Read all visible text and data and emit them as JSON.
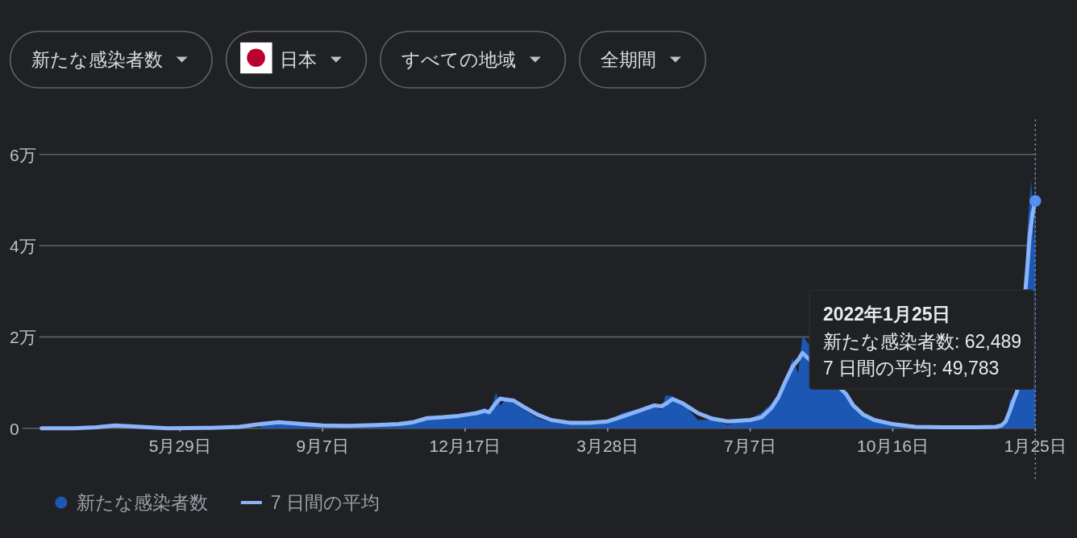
{
  "chart_data": {
    "type": "area",
    "xlim": [
      "2020-02-21",
      "2022-01-25"
    ],
    "xticks": [
      {
        "value": "2020-05-29",
        "label": "5月29日"
      },
      {
        "value": "2020-09-07",
        "label": "9月7日"
      },
      {
        "value": "2020-12-17",
        "label": "12月17日"
      },
      {
        "value": "2021-03-28",
        "label": "3月28日"
      },
      {
        "value": "2021-07-07",
        "label": "7月7日"
      },
      {
        "value": "2021-10-16",
        "label": "10月16日"
      },
      {
        "value": "2022-01-25",
        "label": "1月25日"
      }
    ],
    "ylim": [
      0,
      6.8
    ],
    "yticks": [
      0,
      {
        "value": 2,
        "label": "2万"
      },
      {
        "value": 4,
        "label": "4万"
      },
      {
        "value": 6,
        "label": "6万"
      }
    ],
    "grid": "y",
    "legend": "bottom",
    "series": [
      {
        "name": "新たな感染者数",
        "color": "#1b57b3",
        "x": [
          "2020-07-25",
          "2020-08-07",
          "2020-08-20",
          "2020-09-07",
          "2020-09-25",
          "2020-10-15",
          "2020-10-31",
          "2020-11-10",
          "2020-11-20",
          "2020-12-01",
          "2020-12-12",
          "2020-12-25",
          "2020-12-31",
          "2021-01-03",
          "2021-01-08",
          "2021-01-11",
          "2021-01-16",
          "2021-01-20",
          "2021-01-28",
          "2021-02-06",
          "2021-02-16",
          "2021-03-01",
          "2021-03-15",
          "2021-03-28",
          "2021-04-08",
          "2021-04-20",
          "2021-04-30",
          "2021-05-05",
          "2021-05-08",
          "2021-05-13",
          "2021-05-20",
          "2021-05-31",
          "2021-06-10",
          "2021-06-21",
          "2021-07-07",
          "2021-07-15",
          "2021-07-22",
          "2021-07-27",
          "2021-08-01",
          "2021-08-06",
          "2021-08-10",
          "2021-08-13",
          "2021-09-13",
          "2021-09-18",
          "2021-09-25",
          "2021-10-03",
          "2021-10-16",
          "2021-11-01",
          "2021-11-20",
          "2021-12-15",
          "2021-12-28",
          "2022-01-01",
          "2022-01-04",
          "2022-01-07",
          "2022-01-10",
          "2022-01-18",
          "2022-01-19",
          "2022-01-20",
          "2022-01-21",
          "2022-01-22",
          "2022-01-23",
          "2022-01-24",
          "2022-01-25"
        ],
        "values": [
          0.09,
          0.16,
          0.1,
          0.05,
          0.05,
          0.07,
          0.09,
          0.13,
          0.24,
          0.24,
          0.3,
          0.38,
          0.45,
          0.31,
          0.78,
          0.49,
          0.7,
          0.55,
          0.4,
          0.23,
          0.13,
          0.09,
          0.08,
          0.17,
          0.34,
          0.43,
          0.47,
          0.4,
          0.72,
          0.7,
          0.56,
          0.18,
          0.19,
          0.08,
          0.21,
          0.34,
          0.54,
          0.76,
          1.01,
          1.53,
          1.2,
          2.03,
          0.7,
          0.45,
          0.27,
          0.14,
          0.05,
          0.02,
          0.02,
          0.02,
          0.04,
          0.05,
          0.11,
          0.62,
          0.64,
          3.22,
          4.15,
          4.62,
          4.99,
          5.45,
          5.0,
          4.0,
          6.2489
        ]
      },
      {
        "name": "7 日間の平均",
        "type": "line",
        "color": "#8ab4f8",
        "x": [
          "2020-02-21",
          "2020-03-15",
          "2020-03-31",
          "2020-04-13",
          "2020-05-01",
          "2020-05-20",
          "2020-06-20",
          "2020-07-10",
          "2020-07-25",
          "2020-08-07",
          "2020-08-20",
          "2020-09-07",
          "2020-09-25",
          "2020-10-15",
          "2020-10-31",
          "2020-11-10",
          "2020-11-20",
          "2020-12-01",
          "2020-12-12",
          "2020-12-25",
          "2020-12-31",
          "2021-01-03",
          "2021-01-08",
          "2021-01-11",
          "2021-01-16",
          "2021-01-20",
          "2021-01-28",
          "2021-02-06",
          "2021-02-16",
          "2021-03-01",
          "2021-03-15",
          "2021-03-28",
          "2021-04-08",
          "2021-04-20",
          "2021-04-30",
          "2021-05-05",
          "2021-05-08",
          "2021-05-13",
          "2021-05-20",
          "2021-05-31",
          "2021-06-10",
          "2021-06-21",
          "2021-07-07",
          "2021-07-15",
          "2021-07-22",
          "2021-07-27",
          "2021-08-01",
          "2021-08-06",
          "2021-08-10",
          "2021-08-13",
          "2021-09-13",
          "2021-09-18",
          "2021-09-25",
          "2021-10-03",
          "2021-10-16",
          "2021-11-01",
          "2021-11-20",
          "2021-12-15",
          "2021-12-28",
          "2022-01-01",
          "2022-01-04",
          "2022-01-07",
          "2022-01-10",
          "2022-01-12",
          "2022-01-19",
          "2022-01-21",
          "2022-01-23",
          "2022-01-25"
        ],
        "values": [
          0,
          0,
          0.02,
          0.06,
          0.03,
          0,
          0.01,
          0.03,
          0.09,
          0.13,
          0.1,
          0.06,
          0.05,
          0.07,
          0.09,
          0.13,
          0.22,
          0.24,
          0.27,
          0.33,
          0.38,
          0.35,
          0.56,
          0.65,
          0.62,
          0.61,
          0.46,
          0.3,
          0.18,
          0.12,
          0.12,
          0.15,
          0.26,
          0.39,
          0.5,
          0.48,
          0.53,
          0.64,
          0.55,
          0.33,
          0.21,
          0.15,
          0.18,
          0.24,
          0.44,
          0.68,
          1.03,
          1.35,
          1.5,
          1.65,
          0.75,
          0.5,
          0.3,
          0.18,
          0.09,
          0.03,
          0.02,
          0.02,
          0.03,
          0.06,
          0.15,
          0.38,
          0.65,
          0.8,
          3.4,
          4.2,
          4.7,
          4.9783
        ]
      }
    ],
    "ref_lines": [
      {
        "axis": "x",
        "value": "2022-01-25",
        "line_style": "dotted",
        "color": "#9aa0a6"
      }
    ],
    "annotations": [
      "新たな感染者数",
      "日本",
      "すべての地域",
      "全期間",
      "2022年1月25日",
      "新たな感染者数: 62,489",
      "7 日間の平均: 49,783"
    ]
  }
}
